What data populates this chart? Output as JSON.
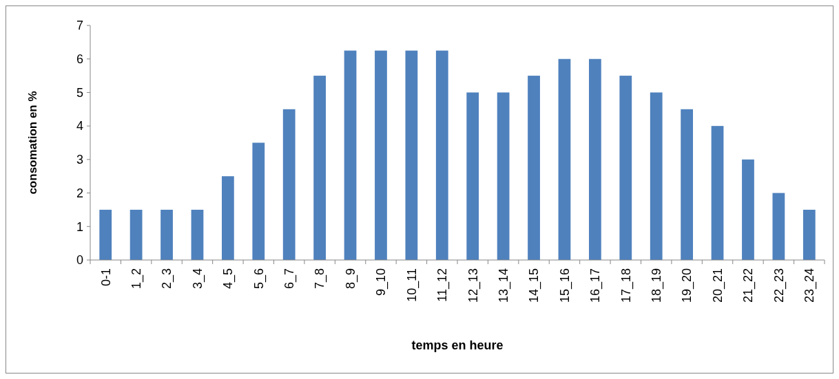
{
  "chart_data": {
    "type": "bar",
    "xlabel": "temps en heure",
    "ylabel": "consomation en %",
    "categories": [
      "0-1",
      "1_2",
      "2_3",
      "3_4",
      "4_5",
      "5_6",
      "6_7",
      "7_8",
      "8_9",
      "9_10",
      "10_11",
      "11_12",
      "12_13",
      "13_14",
      "14_15",
      "15_16",
      "16_17",
      "17_18",
      "18_19",
      "19_20",
      "20_21",
      "21_22",
      "22_23",
      "23_24"
    ],
    "values": [
      1.5,
      1.5,
      1.5,
      1.5,
      2.5,
      3.5,
      4.5,
      5.5,
      6.25,
      6.25,
      6.25,
      6.25,
      5,
      5,
      5.5,
      6,
      6,
      5.5,
      5,
      4.5,
      4,
      3,
      2,
      1.5
    ],
    "color": "#4f81bd",
    "ylim": [
      0,
      7
    ],
    "yticks": [
      0,
      1,
      2,
      3,
      4,
      5,
      6,
      7
    ],
    "grid": false
  }
}
